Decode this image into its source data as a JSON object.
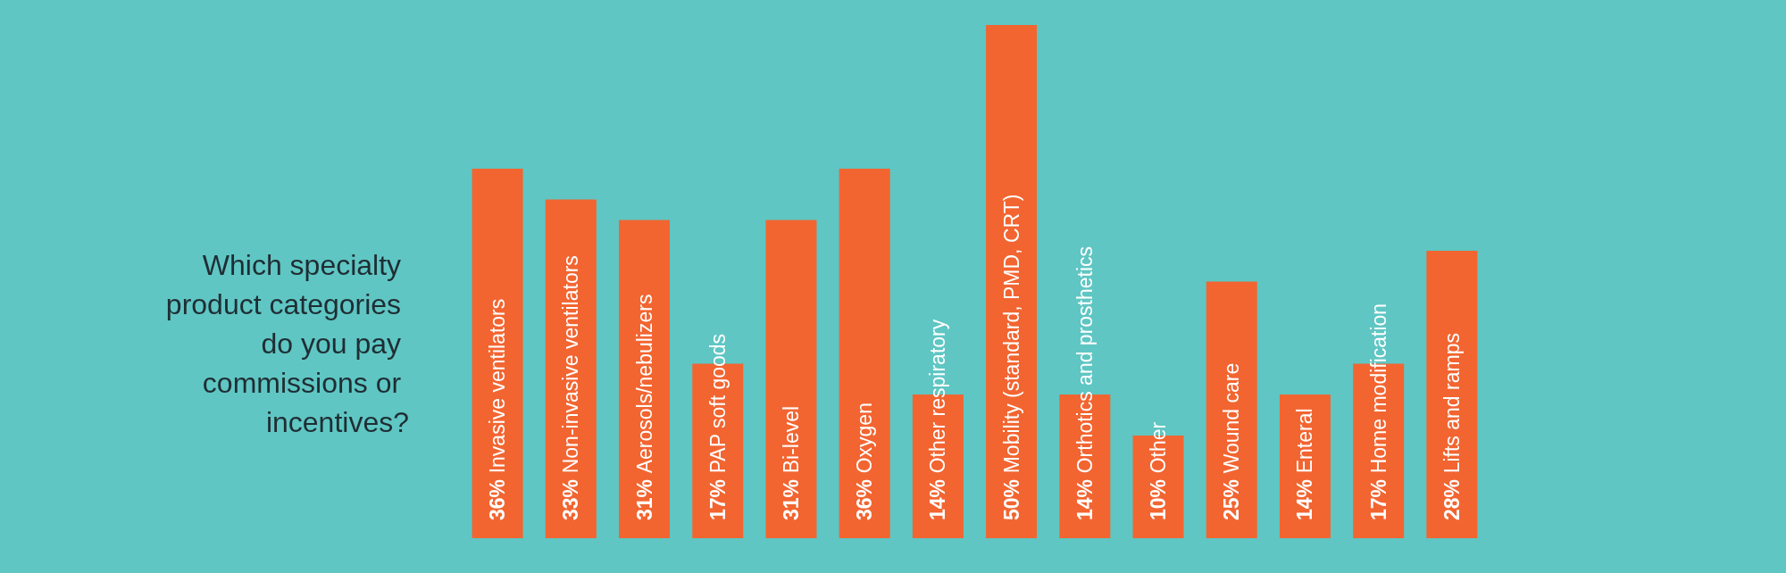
{
  "chart_data": {
    "type": "bar",
    "title": "Which specialty product categories do you pay commissions or incentives?",
    "categories": [
      "Invasive ventilators",
      "Non-invasive ventilators",
      "Aerosols/nebulizers",
      "PAP soft goods",
      "Bi-level",
      "Oxygen",
      "Other respiratory",
      "Mobility (standard, PMD, CRT)",
      "Orthotics and prosthetics",
      "Other",
      "Wound care",
      "Enteral",
      "Home modification",
      "Lifts and ramps"
    ],
    "values": [
      36,
      33,
      31,
      17,
      31,
      36,
      14,
      50,
      14,
      10,
      25,
      14,
      17,
      28
    ],
    "value_labels": [
      "36%",
      "33%",
      "31%",
      "17%",
      "31%",
      "36%",
      "14%",
      "50%",
      "14%",
      "10%",
      "25%",
      "14%",
      "17%",
      "28%"
    ],
    "color": "#f26531"
  }
}
